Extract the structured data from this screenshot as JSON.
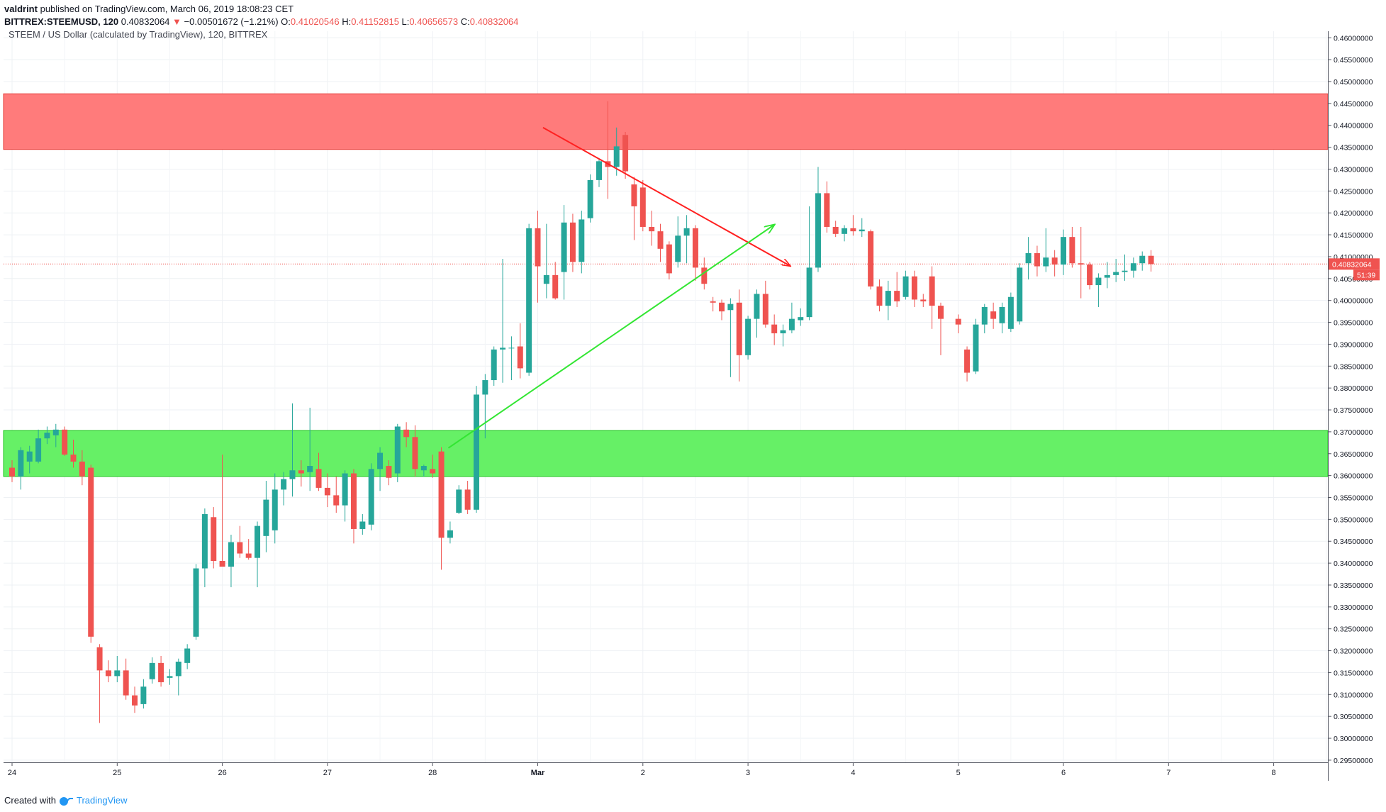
{
  "header": {
    "author": "valdrint",
    "published_text": "published on TradingView.com, March 06, 2019 18:08:23 CET",
    "symbol": "BITTREX:STEEMUSD, 120",
    "last_value": "0.40832064",
    "change": "−0.00501672 (−1.21%)",
    "o_label": "O:",
    "o_value": "0.41020546",
    "h_label": "H:",
    "h_value": "0.41152815",
    "l_label": "L:",
    "l_value": "0.40656573",
    "c_label": "C:",
    "c_value": "0.40832064"
  },
  "footer": {
    "created_with": "Created with",
    "brand": "TradingView"
  },
  "chart_data": {
    "type": "candlestick",
    "title": "STEEM / US Dollar (calculated by TradingView), 120, BITTREX",
    "x_tick_labels": [
      "24",
      "25",
      "26",
      "27",
      "28",
      "Mar",
      "2",
      "3",
      "4",
      "5",
      "6",
      "7",
      "8"
    ],
    "x_tick_days": [
      0,
      1,
      2,
      3,
      4,
      5,
      6,
      7,
      8,
      9,
      10,
      11,
      12
    ],
    "ylim": [
      0.2945,
      0.4615
    ],
    "y_tick_labels": [
      "0.46000000",
      "0.45500000",
      "0.45000000",
      "0.44500000",
      "0.44000000",
      "0.43500000",
      "0.43000000",
      "0.42500000",
      "0.42000000",
      "0.41500000",
      "0.41000000",
      "0.40500000",
      "0.40000000",
      "0.39500000",
      "0.39000000",
      "0.38500000",
      "0.38000000",
      "0.37500000",
      "0.37000000",
      "0.36500000",
      "0.36000000",
      "0.35500000",
      "0.35000000",
      "0.34500000",
      "0.34000000",
      "0.33500000",
      "0.33000000",
      "0.32500000",
      "0.32000000",
      "0.31500000",
      "0.31000000",
      "0.30500000",
      "0.30000000",
      "0.29500000"
    ],
    "last_price_label": "0.40832064",
    "countdown_label": "51:39",
    "grid": true,
    "colors": {
      "up": "#26a69a",
      "down": "#ef5350",
      "resistance_zone": "#ff7b7b",
      "support_zone": "#66f066",
      "resistance_line": "#ff2020",
      "support_line": "#33e633",
      "price_line": "#ef5350"
    },
    "zones": [
      {
        "kind": "resistance",
        "low": 0.4345,
        "high": 0.4472
      },
      {
        "kind": "support",
        "low": 0.3598,
        "high": 0.3703
      }
    ],
    "trendlines": [
      {
        "kind": "descending",
        "from": [
          5.05,
          0.4395
        ],
        "to": [
          7.4,
          0.4079
        ],
        "arrow": true
      },
      {
        "kind": "ascending",
        "from": [
          4.15,
          0.3663
        ],
        "to": [
          7.25,
          0.4173
        ],
        "arrow": true
      }
    ],
    "candles": [
      {
        "t": 0.0,
        "o": 0.3618,
        "h": 0.3635,
        "l": 0.3585,
        "c": 0.3598
      },
      {
        "t": 0.0833,
        "o": 0.3598,
        "h": 0.3665,
        "l": 0.3568,
        "c": 0.3658
      },
      {
        "t": 0.1667,
        "o": 0.3632,
        "h": 0.3668,
        "l": 0.3605,
        "c": 0.3655
      },
      {
        "t": 0.25,
        "o": 0.3632,
        "h": 0.3705,
        "l": 0.3628,
        "c": 0.3685
      },
      {
        "t": 0.3333,
        "o": 0.3685,
        "h": 0.3712,
        "l": 0.3672,
        "c": 0.3698
      },
      {
        "t": 0.4167,
        "o": 0.3692,
        "h": 0.3718,
        "l": 0.3665,
        "c": 0.3705
      },
      {
        "t": 0.5,
        "o": 0.3705,
        "h": 0.3712,
        "l": 0.3645,
        "c": 0.3648
      },
      {
        "t": 0.5833,
        "o": 0.3648,
        "h": 0.3682,
        "l": 0.3618,
        "c": 0.3632
      },
      {
        "t": 0.6667,
        "o": 0.3632,
        "h": 0.3658,
        "l": 0.3578,
        "c": 0.3598
      },
      {
        "t": 0.75,
        "o": 0.3618,
        "h": 0.3625,
        "l": 0.3218,
        "c": 0.3232
      },
      {
        "t": 0.8333,
        "o": 0.3208,
        "h": 0.3215,
        "l": 0.3035,
        "c": 0.3155
      },
      {
        "t": 0.9167,
        "o": 0.3155,
        "h": 0.3178,
        "l": 0.3128,
        "c": 0.3142
      },
      {
        "t": 1.0,
        "o": 0.3142,
        "h": 0.3188,
        "l": 0.3128,
        "c": 0.3155
      },
      {
        "t": 1.0833,
        "o": 0.3155,
        "h": 0.3182,
        "l": 0.3088,
        "c": 0.3098
      },
      {
        "t": 1.1667,
        "o": 0.3098,
        "h": 0.3118,
        "l": 0.3058,
        "c": 0.3075
      },
      {
        "t": 1.25,
        "o": 0.3078,
        "h": 0.3135,
        "l": 0.3068,
        "c": 0.3118
      },
      {
        "t": 1.3333,
        "o": 0.3135,
        "h": 0.3185,
        "l": 0.3125,
        "c": 0.3172
      },
      {
        "t": 1.4167,
        "o": 0.3172,
        "h": 0.3188,
        "l": 0.3118,
        "c": 0.3128
      },
      {
        "t": 1.5,
        "o": 0.3138,
        "h": 0.3158,
        "l": 0.3122,
        "c": 0.3142
      },
      {
        "t": 1.5833,
        "o": 0.3142,
        "h": 0.3182,
        "l": 0.3098,
        "c": 0.3175
      },
      {
        "t": 1.6667,
        "o": 0.3172,
        "h": 0.3215,
        "l": 0.3158,
        "c": 0.3205
      },
      {
        "t": 1.75,
        "o": 0.3232,
        "h": 0.3398,
        "l": 0.3225,
        "c": 0.3388
      },
      {
        "t": 1.8333,
        "o": 0.3388,
        "h": 0.3525,
        "l": 0.3345,
        "c": 0.3512
      },
      {
        "t": 1.9167,
        "o": 0.3505,
        "h": 0.3528,
        "l": 0.3388,
        "c": 0.3405
      },
      {
        "t": 2.0,
        "o": 0.3405,
        "h": 0.3648,
        "l": 0.3398,
        "c": 0.3392
      },
      {
        "t": 2.0833,
        "o": 0.3392,
        "h": 0.3465,
        "l": 0.3345,
        "c": 0.3448
      },
      {
        "t": 2.1667,
        "o": 0.3448,
        "h": 0.3485,
        "l": 0.3412,
        "c": 0.3422
      },
      {
        "t": 2.25,
        "o": 0.3422,
        "h": 0.3455,
        "l": 0.3408,
        "c": 0.3412
      },
      {
        "t": 2.3333,
        "o": 0.3412,
        "h": 0.3495,
        "l": 0.3345,
        "c": 0.3485
      },
      {
        "t": 2.4167,
        "o": 0.3462,
        "h": 0.3588,
        "l": 0.3425,
        "c": 0.3545
      },
      {
        "t": 2.5,
        "o": 0.3475,
        "h": 0.3605,
        "l": 0.3445,
        "c": 0.3568
      },
      {
        "t": 2.5833,
        "o": 0.3568,
        "h": 0.3608,
        "l": 0.3532,
        "c": 0.3592
      },
      {
        "t": 2.6667,
        "o": 0.3592,
        "h": 0.3765,
        "l": 0.3552,
        "c": 0.3612
      },
      {
        "t": 2.75,
        "o": 0.3612,
        "h": 0.3635,
        "l": 0.3575,
        "c": 0.3605
      },
      {
        "t": 2.8333,
        "o": 0.3608,
        "h": 0.3755,
        "l": 0.3565,
        "c": 0.3622
      },
      {
        "t": 2.9167,
        "o": 0.3615,
        "h": 0.3652,
        "l": 0.3565,
        "c": 0.3572
      },
      {
        "t": 3.0,
        "o": 0.3572,
        "h": 0.3605,
        "l": 0.3528,
        "c": 0.3555
      },
      {
        "t": 3.0833,
        "o": 0.3555,
        "h": 0.3598,
        "l": 0.3515,
        "c": 0.3532
      },
      {
        "t": 3.1667,
        "o": 0.3532,
        "h": 0.3612,
        "l": 0.3495,
        "c": 0.3605
      },
      {
        "t": 3.25,
        "o": 0.3605,
        "h": 0.3615,
        "l": 0.3445,
        "c": 0.3478
      },
      {
        "t": 3.3333,
        "o": 0.3478,
        "h": 0.3512,
        "l": 0.3465,
        "c": 0.3495
      },
      {
        "t": 3.4167,
        "o": 0.3488,
        "h": 0.3628,
        "l": 0.3475,
        "c": 0.3615
      },
      {
        "t": 3.5,
        "o": 0.3615,
        "h": 0.3665,
        "l": 0.3565,
        "c": 0.3652
      },
      {
        "t": 3.5833,
        "o": 0.3622,
        "h": 0.3635,
        "l": 0.3578,
        "c": 0.3595
      },
      {
        "t": 3.6667,
        "o": 0.3605,
        "h": 0.3718,
        "l": 0.3585,
        "c": 0.3712
      },
      {
        "t": 3.75,
        "o": 0.3705,
        "h": 0.3722,
        "l": 0.3665,
        "c": 0.3688
      },
      {
        "t": 3.8333,
        "o": 0.3688,
        "h": 0.3715,
        "l": 0.3598,
        "c": 0.3615
      },
      {
        "t": 3.9167,
        "o": 0.3612,
        "h": 0.3625,
        "l": 0.3598,
        "c": 0.3622
      },
      {
        "t": 4.0,
        "o": 0.3615,
        "h": 0.3648,
        "l": 0.3595,
        "c": 0.3605
      },
      {
        "t": 4.0833,
        "o": 0.3655,
        "h": 0.3665,
        "l": 0.3385,
        "c": 0.3458
      },
      {
        "t": 4.1667,
        "o": 0.3458,
        "h": 0.3495,
        "l": 0.3445,
        "c": 0.3475
      },
      {
        "t": 4.25,
        "o": 0.3515,
        "h": 0.3578,
        "l": 0.3512,
        "c": 0.3568
      },
      {
        "t": 4.3333,
        "o": 0.3568,
        "h": 0.3588,
        "l": 0.3512,
        "c": 0.3522
      },
      {
        "t": 4.4167,
        "o": 0.3522,
        "h": 0.3805,
        "l": 0.3515,
        "c": 0.3785
      },
      {
        "t": 4.5,
        "o": 0.3785,
        "h": 0.3832,
        "l": 0.3685,
        "c": 0.3818
      },
      {
        "t": 4.5833,
        "o": 0.3818,
        "h": 0.3895,
        "l": 0.3805,
        "c": 0.3888
      },
      {
        "t": 4.6667,
        "o": 0.3888,
        "h": 0.4095,
        "l": 0.3812,
        "c": 0.3892
      },
      {
        "t": 4.75,
        "o": 0.3892,
        "h": 0.3918,
        "l": 0.3818,
        "c": 0.3892
      },
      {
        "t": 4.8333,
        "o": 0.3895,
        "h": 0.3948,
        "l": 0.3822,
        "c": 0.3845
      },
      {
        "t": 4.9167,
        "o": 0.3835,
        "h": 0.4175,
        "l": 0.3828,
        "c": 0.4165
      },
      {
        "t": 5.0,
        "o": 0.4165,
        "h": 0.4205,
        "l": 0.3995,
        "c": 0.4078
      },
      {
        "t": 5.0833,
        "o": 0.4038,
        "h": 0.4175,
        "l": 0.4005,
        "c": 0.4058
      },
      {
        "t": 5.1667,
        "o": 0.4058,
        "h": 0.4088,
        "l": 0.4002,
        "c": 0.4005
      },
      {
        "t": 5.25,
        "o": 0.4065,
        "h": 0.4218,
        "l": 0.4002,
        "c": 0.4178
      },
      {
        "t": 5.3333,
        "o": 0.4178,
        "h": 0.4198,
        "l": 0.4065,
        "c": 0.4088
      },
      {
        "t": 5.4167,
        "o": 0.4088,
        "h": 0.4205,
        "l": 0.4062,
        "c": 0.4185
      },
      {
        "t": 5.5,
        "o": 0.4188,
        "h": 0.4288,
        "l": 0.4178,
        "c": 0.4275
      },
      {
        "t": 5.5833,
        "o": 0.4275,
        "h": 0.4325,
        "l": 0.4259,
        "c": 0.4318
      },
      {
        "t": 5.6667,
        "o": 0.4318,
        "h": 0.4455,
        "l": 0.4232,
        "c": 0.4305
      },
      {
        "t": 5.75,
        "o": 0.4305,
        "h": 0.4395,
        "l": 0.4285,
        "c": 0.4352
      },
      {
        "t": 5.8333,
        "o": 0.4378,
        "h": 0.4385,
        "l": 0.4278,
        "c": 0.4295
      },
      {
        "t": 5.9167,
        "o": 0.4265,
        "h": 0.4282,
        "l": 0.4138,
        "c": 0.4215
      },
      {
        "t": 6.0,
        "o": 0.4258,
        "h": 0.4275,
        "l": 0.4158,
        "c": 0.4168
      },
      {
        "t": 6.0833,
        "o": 0.4168,
        "h": 0.4205,
        "l": 0.4125,
        "c": 0.4158
      },
      {
        "t": 6.1667,
        "o": 0.4158,
        "h": 0.4175,
        "l": 0.4088,
        "c": 0.4118
      },
      {
        "t": 6.25,
        "o": 0.4128,
        "h": 0.4135,
        "l": 0.4048,
        "c": 0.4062
      },
      {
        "t": 6.3333,
        "o": 0.4088,
        "h": 0.4192,
        "l": 0.4075,
        "c": 0.4148
      },
      {
        "t": 6.4167,
        "o": 0.4148,
        "h": 0.4195,
        "l": 0.4085,
        "c": 0.4165
      },
      {
        "t": 6.5,
        "o": 0.4165,
        "h": 0.4172,
        "l": 0.4045,
        "c": 0.4075
      },
      {
        "t": 6.5833,
        "o": 0.4075,
        "h": 0.4098,
        "l": 0.4025,
        "c": 0.4038
      },
      {
        "t": 6.6667,
        "o": 0.3998,
        "h": 0.4008,
        "l": 0.3975,
        "c": 0.3995
      },
      {
        "t": 6.75,
        "o": 0.3995,
        "h": 0.4002,
        "l": 0.3955,
        "c": 0.3975
      },
      {
        "t": 6.8333,
        "o": 0.3978,
        "h": 0.4005,
        "l": 0.3825,
        "c": 0.3992
      },
      {
        "t": 6.9167,
        "o": 0.3995,
        "h": 0.4025,
        "l": 0.3815,
        "c": 0.3875
      },
      {
        "t": 7.0,
        "o": 0.3875,
        "h": 0.3965,
        "l": 0.3865,
        "c": 0.3958
      },
      {
        "t": 7.0833,
        "o": 0.3958,
        "h": 0.4025,
        "l": 0.3915,
        "c": 0.4015
      },
      {
        "t": 7.1667,
        "o": 0.4015,
        "h": 0.4045,
        "l": 0.3938,
        "c": 0.3945
      },
      {
        "t": 7.25,
        "o": 0.3945,
        "h": 0.3968,
        "l": 0.3898,
        "c": 0.3925
      },
      {
        "t": 7.3333,
        "o": 0.3925,
        "h": 0.3945,
        "l": 0.3895,
        "c": 0.3932
      },
      {
        "t": 7.4167,
        "o": 0.3932,
        "h": 0.3995,
        "l": 0.3925,
        "c": 0.3958
      },
      {
        "t": 7.5,
        "o": 0.3955,
        "h": 0.3982,
        "l": 0.3942,
        "c": 0.3962
      },
      {
        "t": 7.5833,
        "o": 0.3962,
        "h": 0.4215,
        "l": 0.3955,
        "c": 0.4075
      },
      {
        "t": 7.6667,
        "o": 0.4075,
        "h": 0.4305,
        "l": 0.4065,
        "c": 0.4245
      },
      {
        "t": 7.75,
        "o": 0.4245,
        "h": 0.4272,
        "l": 0.4155,
        "c": 0.4168
      },
      {
        "t": 7.8333,
        "o": 0.4168,
        "h": 0.4182,
        "l": 0.4145,
        "c": 0.4152
      },
      {
        "t": 7.9167,
        "o": 0.4152,
        "h": 0.4172,
        "l": 0.4135,
        "c": 0.4165
      },
      {
        "t": 8.0,
        "o": 0.4165,
        "h": 0.4195,
        "l": 0.4148,
        "c": 0.4158
      },
      {
        "t": 8.0833,
        "o": 0.4158,
        "h": 0.4188,
        "l": 0.4145,
        "c": 0.4162
      },
      {
        "t": 8.1667,
        "o": 0.4158,
        "h": 0.4162,
        "l": 0.4025,
        "c": 0.4032
      },
      {
        "t": 8.25,
        "o": 0.4032,
        "h": 0.4048,
        "l": 0.3975,
        "c": 0.3988
      },
      {
        "t": 8.3333,
        "o": 0.3988,
        "h": 0.4045,
        "l": 0.3955,
        "c": 0.4022
      },
      {
        "t": 8.4167,
        "o": 0.4022,
        "h": 0.4065,
        "l": 0.3985,
        "c": 0.3998
      },
      {
        "t": 8.5,
        "o": 0.4008,
        "h": 0.4068,
        "l": 0.4002,
        "c": 0.4055
      },
      {
        "t": 8.5833,
        "o": 0.4055,
        "h": 0.4068,
        "l": 0.3985,
        "c": 0.4002
      },
      {
        "t": 8.6667,
        "o": 0.4002,
        "h": 0.4015,
        "l": 0.3985,
        "c": 0.3998
      },
      {
        "t": 8.75,
        "o": 0.4055,
        "h": 0.4078,
        "l": 0.3935,
        "c": 0.3988
      },
      {
        "t": 8.8333,
        "o": 0.3988,
        "h": 0.3995,
        "l": 0.3875,
        "c": 0.3958
      },
      {
        "t": 9.0,
        "o": 0.3958,
        "h": 0.3968,
        "l": 0.3925,
        "c": 0.3945
      },
      {
        "t": 9.0833,
        "o": 0.3888,
        "h": 0.3895,
        "l": 0.3815,
        "c": 0.3835
      },
      {
        "t": 9.1667,
        "o": 0.3838,
        "h": 0.3958,
        "l": 0.3832,
        "c": 0.3945
      },
      {
        "t": 9.25,
        "o": 0.3945,
        "h": 0.3992,
        "l": 0.3925,
        "c": 0.3985
      },
      {
        "t": 9.3333,
        "o": 0.3975,
        "h": 0.3995,
        "l": 0.3935,
        "c": 0.3958
      },
      {
        "t": 9.4167,
        "o": 0.3948,
        "h": 0.3995,
        "l": 0.3925,
        "c": 0.3985
      },
      {
        "t": 9.5,
        "o": 0.3935,
        "h": 0.4018,
        "l": 0.3928,
        "c": 0.4008
      },
      {
        "t": 9.5833,
        "o": 0.3952,
        "h": 0.4085,
        "l": 0.3945,
        "c": 0.4075
      },
      {
        "t": 9.6667,
        "o": 0.4085,
        "h": 0.4145,
        "l": 0.4048,
        "c": 0.4108
      },
      {
        "t": 9.75,
        "o": 0.4108,
        "h": 0.4125,
        "l": 0.4055,
        "c": 0.4078
      },
      {
        "t": 9.8333,
        "o": 0.4078,
        "h": 0.4165,
        "l": 0.4065,
        "c": 0.4098
      },
      {
        "t": 9.9167,
        "o": 0.4098,
        "h": 0.4115,
        "l": 0.4055,
        "c": 0.4082
      },
      {
        "t": 10.0,
        "o": 0.4082,
        "h": 0.4162,
        "l": 0.4058,
        "c": 0.4145
      },
      {
        "t": 10.0833,
        "o": 0.4145,
        "h": 0.4168,
        "l": 0.4075,
        "c": 0.4085
      },
      {
        "t": 10.1667,
        "o": 0.4085,
        "h": 0.4168,
        "l": 0.4005,
        "c": 0.4082
      },
      {
        "t": 10.25,
        "o": 0.4082,
        "h": 0.4088,
        "l": 0.4025,
        "c": 0.4035
      },
      {
        "t": 10.3333,
        "o": 0.4035,
        "h": 0.4062,
        "l": 0.3985,
        "c": 0.4052
      },
      {
        "t": 10.4167,
        "o": 0.4052,
        "h": 0.4088,
        "l": 0.4028,
        "c": 0.4058
      },
      {
        "t": 10.5,
        "o": 0.4058,
        "h": 0.4095,
        "l": 0.4042,
        "c": 0.4065
      },
      {
        "t": 10.5833,
        "o": 0.4065,
        "h": 0.4105,
        "l": 0.4045,
        "c": 0.4068
      },
      {
        "t": 10.6667,
        "o": 0.4068,
        "h": 0.4098,
        "l": 0.4052,
        "c": 0.4085
      },
      {
        "t": 10.75,
        "o": 0.4085,
        "h": 0.4112,
        "l": 0.4068,
        "c": 0.4102
      },
      {
        "t": 10.8333,
        "o": 0.4102,
        "h": 0.4115,
        "l": 0.4066,
        "c": 0.4083
      }
    ]
  }
}
